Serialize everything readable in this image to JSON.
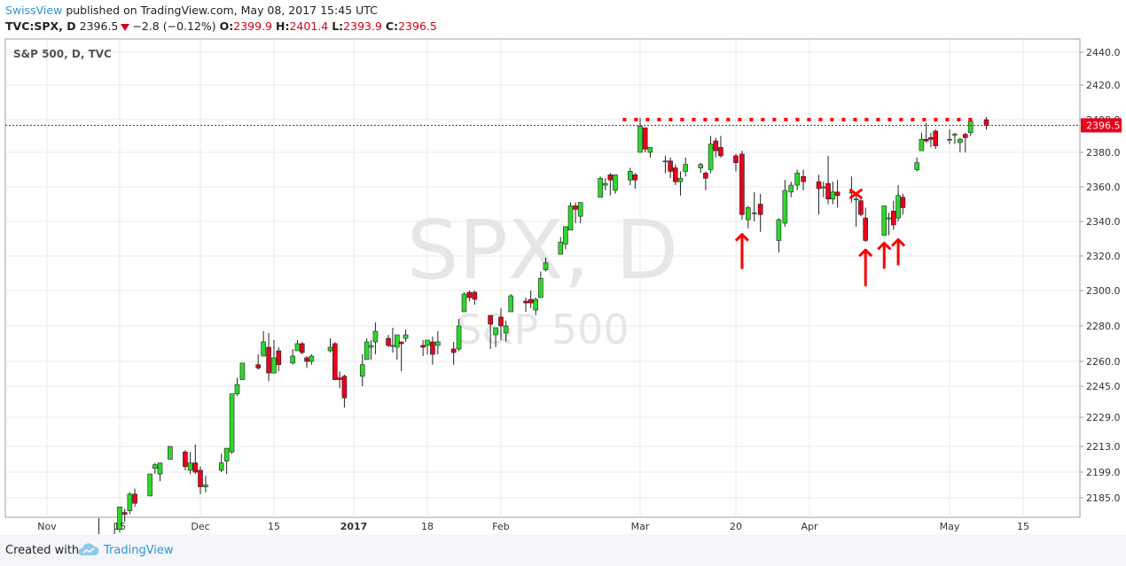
{
  "header": {
    "author": "SwissView",
    "published_text": "published on TradingView.com, May 08, 2017 15:45 UTC",
    "symbol": "TVC:SPX, D",
    "last": "2396.5",
    "change": "−2.8 (−0.12%)",
    "open_label": "O:",
    "open": "2399.9",
    "high_label": "H:",
    "high": "2401.4",
    "low_label": "L:",
    "low": "2393.9",
    "close_label": "C:",
    "close": "2396.5"
  },
  "footer": {
    "created_with": "Created with",
    "brand": "TradingView",
    "logo_icon": "tradingview-cloud-icon"
  },
  "colors": {
    "up": "#2cd82c",
    "down": "#e8001c",
    "grid": "#e8e8e8",
    "annotation": "#ff0000",
    "brand": "#2e93d7"
  },
  "chart_data": {
    "type": "candlestick",
    "title": "S&P 500, D, TVC",
    "watermark_main": "SPX, D",
    "watermark_sub": "S&P 500",
    "y_ticks": [
      "2440.0",
      "2420.0",
      "2400.0",
      "2380.0",
      "2360.0",
      "2340.0",
      "2320.0",
      "2300.0",
      "2280.0",
      "2260.0",
      "2245.0",
      "2229.0",
      "2213.0",
      "2199.0",
      "2185.0"
    ],
    "x_ticks": [
      "Nov",
      "15",
      "Dec",
      "15",
      "2017",
      "18",
      "Feb",
      "Mar",
      "20",
      "Apr",
      "May",
      "15"
    ],
    "last_price": "2396.5",
    "resistance_level": 2400,
    "candles": [
      {
        "date": "2016-11-11",
        "o": 2163,
        "h": 2174,
        "l": 2157,
        "c": 2164
      },
      {
        "date": "2016-11-14",
        "o": 2165,
        "h": 2171,
        "l": 2156,
        "c": 2164
      },
      {
        "date": "2016-11-15",
        "o": 2168,
        "h": 2180,
        "l": 2166,
        "c": 2180
      },
      {
        "date": "2016-11-16",
        "o": 2177,
        "h": 2179,
        "l": 2172,
        "c": 2176
      },
      {
        "date": "2016-11-17",
        "o": 2178,
        "h": 2188,
        "l": 2176,
        "c": 2187
      },
      {
        "date": "2016-11-18",
        "o": 2187,
        "h": 2190,
        "l": 2180,
        "c": 2182
      },
      {
        "date": "2016-11-21",
        "o": 2186,
        "h": 2198,
        "l": 2186,
        "c": 2198
      },
      {
        "date": "2016-11-22",
        "o": 2201,
        "h": 2204,
        "l": 2198,
        "c": 2203
      },
      {
        "date": "2016-11-23",
        "o": 2198,
        "h": 2204,
        "l": 2194,
        "c": 2204
      },
      {
        "date": "2016-11-25",
        "o": 2206,
        "h": 2213,
        "l": 2206,
        "c": 2213
      },
      {
        "date": "2016-11-28",
        "o": 2210,
        "h": 2211,
        "l": 2200,
        "c": 2202
      },
      {
        "date": "2016-11-29",
        "o": 2200,
        "h": 2210,
        "l": 2198,
        "c": 2204
      },
      {
        "date": "2016-11-30",
        "o": 2204,
        "h": 2214,
        "l": 2198,
        "c": 2199
      },
      {
        "date": "2016-12-01",
        "o": 2200,
        "h": 2202,
        "l": 2187,
        "c": 2191
      },
      {
        "date": "2016-12-02",
        "o": 2191,
        "h": 2197,
        "l": 2188,
        "c": 2192
      },
      {
        "date": "2016-12-05",
        "o": 2200,
        "h": 2209,
        "l": 2199,
        "c": 2204
      },
      {
        "date": "2016-12-06",
        "o": 2205,
        "h": 2212,
        "l": 2198,
        "c": 2212
      },
      {
        "date": "2016-12-07",
        "o": 2210,
        "h": 2241,
        "l": 2209,
        "c": 2241
      },
      {
        "date": "2016-12-08",
        "o": 2241,
        "h": 2250,
        "l": 2240,
        "c": 2246
      },
      {
        "date": "2016-12-09",
        "o": 2249,
        "h": 2259,
        "l": 2249,
        "c": 2259
      },
      {
        "date": "2016-12-12",
        "o": 2258,
        "h": 2264,
        "l": 2255,
        "c": 2256
      },
      {
        "date": "2016-12-13",
        "o": 2263,
        "h": 2277,
        "l": 2263,
        "c": 2271
      },
      {
        "date": "2016-12-14",
        "o": 2268,
        "h": 2276,
        "l": 2248,
        "c": 2253
      },
      {
        "date": "2016-12-15",
        "o": 2253,
        "h": 2272,
        "l": 2253,
        "c": 2262
      },
      {
        "date": "2016-12-16",
        "o": 2266,
        "h": 2268,
        "l": 2254,
        "c": 2258
      },
      {
        "date": "2016-12-19",
        "o": 2259,
        "h": 2267,
        "l": 2258,
        "c": 2263
      },
      {
        "date": "2016-12-20",
        "o": 2266,
        "h": 2272,
        "l": 2266,
        "c": 2270
      },
      {
        "date": "2016-12-21",
        "o": 2270,
        "h": 2271,
        "l": 2264,
        "c": 2265
      },
      {
        "date": "2016-12-22",
        "o": 2262,
        "h": 2263,
        "l": 2256,
        "c": 2260
      },
      {
        "date": "2016-12-23",
        "o": 2260,
        "h": 2264,
        "l": 2258,
        "c": 2263
      },
      {
        "date": "2016-12-27",
        "o": 2266,
        "h": 2273,
        "l": 2265,
        "c": 2268
      },
      {
        "date": "2016-12-28",
        "o": 2270,
        "h": 2271,
        "l": 2249,
        "c": 2249
      },
      {
        "date": "2016-12-29",
        "o": 2250,
        "h": 2254,
        "l": 2244,
        "c": 2249
      },
      {
        "date": "2016-12-30",
        "o": 2251,
        "h": 2252,
        "l": 2234,
        "c": 2239
      },
      {
        "date": "2017-01-03",
        "o": 2251,
        "h": 2264,
        "l": 2245,
        "c": 2258
      },
      {
        "date": "2017-01-04",
        "o": 2261,
        "h": 2273,
        "l": 2261,
        "c": 2271
      },
      {
        "date": "2017-01-05",
        "o": 2268,
        "h": 2272,
        "l": 2261,
        "c": 2269
      },
      {
        "date": "2017-01-06",
        "o": 2271,
        "h": 2282,
        "l": 2264,
        "c": 2277
      },
      {
        "date": "2017-01-09",
        "o": 2273,
        "h": 2275,
        "l": 2268,
        "c": 2269
      },
      {
        "date": "2017-01-10",
        "o": 2269,
        "h": 2279,
        "l": 2265,
        "c": 2269
      },
      {
        "date": "2017-01-11",
        "o": 2268,
        "h": 2275,
        "l": 2261,
        "c": 2275
      },
      {
        "date": "2017-01-12",
        "o": 2271,
        "h": 2271,
        "l": 2254,
        "c": 2270
      },
      {
        "date": "2017-01-13",
        "o": 2273,
        "h": 2278,
        "l": 2271,
        "c": 2275
      },
      {
        "date": "2017-01-17",
        "o": 2269,
        "h": 2272,
        "l": 2263,
        "c": 2268
      },
      {
        "date": "2017-01-18",
        "o": 2269,
        "h": 2272,
        "l": 2264,
        "c": 2272
      },
      {
        "date": "2017-01-19",
        "o": 2271,
        "h": 2274,
        "l": 2258,
        "c": 2264
      },
      {
        "date": "2017-01-20",
        "o": 2269,
        "h": 2277,
        "l": 2264,
        "c": 2271
      },
      {
        "date": "2017-01-23",
        "o": 2267,
        "h": 2271,
        "l": 2258,
        "c": 2265
      },
      {
        "date": "2017-01-24",
        "o": 2267,
        "h": 2284,
        "l": 2266,
        "c": 2280
      },
      {
        "date": "2017-01-25",
        "o": 2288,
        "h": 2299,
        "l": 2288,
        "c": 2298
      },
      {
        "date": "2017-01-26",
        "o": 2299,
        "h": 2300,
        "l": 2294,
        "c": 2296
      },
      {
        "date": "2017-01-27",
        "o": 2299,
        "h": 2300,
        "l": 2292,
        "c": 2295
      },
      {
        "date": "2017-01-30",
        "o": 2286,
        "h": 2286,
        "l": 2267,
        "c": 2281
      },
      {
        "date": "2017-01-31",
        "o": 2275,
        "h": 2279,
        "l": 2268,
        "c": 2279
      },
      {
        "date": "2017-02-01",
        "o": 2285,
        "h": 2290,
        "l": 2272,
        "c": 2280
      },
      {
        "date": "2017-02-02",
        "o": 2276,
        "h": 2283,
        "l": 2271,
        "c": 2280
      },
      {
        "date": "2017-02-03",
        "o": 2288,
        "h": 2298,
        "l": 2288,
        "c": 2297
      },
      {
        "date": "2017-02-06",
        "o": 2294,
        "h": 2296,
        "l": 2288,
        "c": 2293
      },
      {
        "date": "2017-02-07",
        "o": 2295,
        "h": 2300,
        "l": 2290,
        "c": 2293
      },
      {
        "date": "2017-02-08",
        "o": 2289,
        "h": 2296,
        "l": 2286,
        "c": 2295
      },
      {
        "date": "2017-02-09",
        "o": 2296,
        "h": 2311,
        "l": 2296,
        "c": 2307
      },
      {
        "date": "2017-02-10",
        "o": 2312,
        "h": 2319,
        "l": 2311,
        "c": 2316
      },
      {
        "date": "2017-02-13",
        "o": 2321,
        "h": 2331,
        "l": 2321,
        "c": 2328
      },
      {
        "date": "2017-02-14",
        "o": 2327,
        "h": 2337,
        "l": 2324,
        "c": 2337
      },
      {
        "date": "2017-02-15",
        "o": 2335,
        "h": 2351,
        "l": 2335,
        "c": 2349
      },
      {
        "date": "2017-02-16",
        "o": 2349,
        "h": 2351,
        "l": 2339,
        "c": 2347
      },
      {
        "date": "2017-02-17",
        "o": 2343,
        "h": 2351,
        "l": 2339,
        "c": 2351
      },
      {
        "date": "2017-02-21",
        "o": 2354,
        "h": 2366,
        "l": 2354,
        "c": 2365
      },
      {
        "date": "2017-02-22",
        "o": 2361,
        "h": 2365,
        "l": 2358,
        "c": 2362
      },
      {
        "date": "2017-02-23",
        "o": 2367,
        "h": 2368,
        "l": 2355,
        "c": 2364
      },
      {
        "date": "2017-02-24",
        "o": 2358,
        "h": 2367,
        "l": 2356,
        "c": 2367
      },
      {
        "date": "2017-02-27",
        "o": 2364,
        "h": 2371,
        "l": 2361,
        "c": 2369
      },
      {
        "date": "2017-02-28",
        "o": 2367,
        "h": 2368,
        "l": 2359,
        "c": 2364
      },
      {
        "date": "2017-03-01",
        "o": 2380,
        "h": 2401,
        "l": 2380,
        "c": 2396
      },
      {
        "date": "2017-03-02",
        "o": 2395,
        "h": 2395,
        "l": 2380,
        "c": 2382
      },
      {
        "date": "2017-03-03",
        "o": 2380,
        "h": 2383,
        "l": 2377,
        "c": 2383
      },
      {
        "date": "2017-03-06",
        "o": 2375,
        "h": 2378,
        "l": 2368,
        "c": 2375
      },
      {
        "date": "2017-03-07",
        "o": 2375,
        "h": 2377,
        "l": 2365,
        "c": 2369
      },
      {
        "date": "2017-03-08",
        "o": 2371,
        "h": 2373,
        "l": 2361,
        "c": 2363
      },
      {
        "date": "2017-03-09",
        "o": 2363,
        "h": 2369,
        "l": 2355,
        "c": 2365
      },
      {
        "date": "2017-03-10",
        "o": 2369,
        "h": 2377,
        "l": 2366,
        "c": 2373
      },
      {
        "date": "2017-03-13",
        "o": 2371,
        "h": 2374,
        "l": 2368,
        "c": 2373
      },
      {
        "date": "2017-03-14",
        "o": 2368,
        "h": 2369,
        "l": 2358,
        "c": 2365
      },
      {
        "date": "2017-03-15",
        "o": 2370,
        "h": 2390,
        "l": 2368,
        "c": 2385
      },
      {
        "date": "2017-03-16",
        "o": 2387,
        "h": 2389,
        "l": 2377,
        "c": 2381
      },
      {
        "date": "2017-03-17",
        "o": 2383,
        "h": 2390,
        "l": 2377,
        "c": 2378
      },
      {
        "date": "2017-03-20",
        "o": 2378,
        "h": 2379,
        "l": 2369,
        "c": 2374
      },
      {
        "date": "2017-03-21",
        "o": 2379,
        "h": 2381,
        "l": 2341,
        "c": 2344
      },
      {
        "date": "2017-03-22",
        "o": 2341,
        "h": 2349,
        "l": 2336,
        "c": 2348
      },
      {
        "date": "2017-03-23",
        "o": 2345,
        "h": 2357,
        "l": 2340,
        "c": 2345
      },
      {
        "date": "2017-03-24",
        "o": 2350,
        "h": 2356,
        "l": 2334,
        "c": 2344
      },
      {
        "date": "2017-03-27",
        "o": 2329,
        "h": 2342,
        "l": 2322,
        "c": 2341
      },
      {
        "date": "2017-03-28",
        "o": 2339,
        "h": 2364,
        "l": 2337,
        "c": 2358
      },
      {
        "date": "2017-03-29",
        "o": 2357,
        "h": 2363,
        "l": 2354,
        "c": 2361
      },
      {
        "date": "2017-03-30",
        "o": 2361,
        "h": 2370,
        "l": 2358,
        "c": 2368
      },
      {
        "date": "2017-03-31",
        "o": 2366,
        "h": 2370,
        "l": 2358,
        "c": 2363
      },
      {
        "date": "2017-04-03",
        "o": 2363,
        "h": 2367,
        "l": 2344,
        "c": 2359
      },
      {
        "date": "2017-04-04",
        "o": 2360,
        "h": 2363,
        "l": 2354,
        "c": 2360
      },
      {
        "date": "2017-04-05",
        "o": 2362,
        "h": 2378,
        "l": 2350,
        "c": 2353
      },
      {
        "date": "2017-04-06",
        "o": 2353,
        "h": 2363,
        "l": 2350,
        "c": 2357
      },
      {
        "date": "2017-04-07",
        "o": 2357,
        "h": 2364,
        "l": 2348,
        "c": 2355
      },
      {
        "date": "2017-04-10",
        "o": 2357,
        "h": 2366,
        "l": 2351,
        "c": 2357
      },
      {
        "date": "2017-04-11",
        "o": 2353,
        "h": 2355,
        "l": 2337,
        "c": 2353
      },
      {
        "date": "2017-04-12",
        "o": 2352,
        "h": 2353,
        "l": 2343,
        "c": 2344
      },
      {
        "date": "2017-04-13",
        "o": 2342,
        "h": 2348,
        "l": 2328,
        "c": 2329
      },
      {
        "date": "2017-04-17",
        "o": 2332,
        "h": 2349,
        "l": 2332,
        "c": 2349
      },
      {
        "date": "2017-04-18",
        "o": 2342,
        "h": 2345,
        "l": 2332,
        "c": 2342
      },
      {
        "date": "2017-04-19",
        "o": 2346,
        "h": 2352,
        "l": 2335,
        "c": 2338
      },
      {
        "date": "2017-04-20",
        "o": 2342,
        "h": 2361,
        "l": 2340,
        "c": 2355
      },
      {
        "date": "2017-04-21",
        "o": 2354,
        "h": 2356,
        "l": 2344,
        "c": 2348
      },
      {
        "date": "2017-04-24",
        "o": 2370,
        "h": 2377,
        "l": 2369,
        "c": 2374
      },
      {
        "date": "2017-04-25",
        "o": 2381,
        "h": 2392,
        "l": 2381,
        "c": 2388
      },
      {
        "date": "2017-04-26",
        "o": 2388,
        "h": 2398,
        "l": 2386,
        "c": 2387
      },
      {
        "date": "2017-04-27",
        "o": 2389,
        "h": 2392,
        "l": 2383,
        "c": 2388
      },
      {
        "date": "2017-04-28",
        "o": 2393,
        "h": 2394,
        "l": 2382,
        "c": 2384
      },
      {
        "date": "2017-05-01",
        "o": 2388,
        "h": 2394,
        "l": 2385,
        "c": 2388
      },
      {
        "date": "2017-05-02",
        "o": 2391,
        "h": 2392,
        "l": 2385,
        "c": 2391
      },
      {
        "date": "2017-05-03",
        "o": 2386,
        "h": 2389,
        "l": 2380,
        "c": 2388
      },
      {
        "date": "2017-05-04",
        "o": 2391,
        "h": 2392,
        "l": 2380,
        "c": 2389
      },
      {
        "date": "2017-05-05",
        "o": 2392,
        "h": 2400,
        "l": 2390,
        "c": 2399
      },
      {
        "date": "2017-05-08",
        "o": 2399.9,
        "h": 2401.4,
        "l": 2393.9,
        "c": 2396.5
      }
    ]
  }
}
